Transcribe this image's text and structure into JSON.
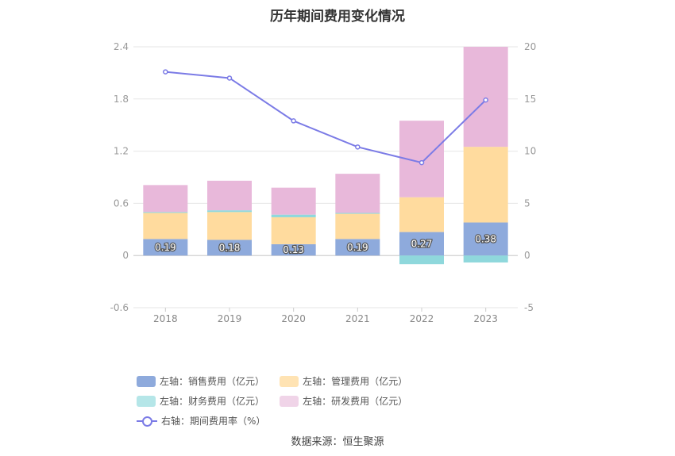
{
  "title": "历年期间费用变化情况",
  "source": "数据来源：恒生聚源",
  "chart_data": {
    "type": "bar",
    "stacked": true,
    "categories": [
      "2018",
      "2019",
      "2020",
      "2021",
      "2022",
      "2023"
    ],
    "left_axis": {
      "ylim": [
        -0.6,
        2.4
      ],
      "ticks": [
        "-0.6",
        "0",
        "0.6",
        "1.2",
        "1.8",
        "2.4"
      ]
    },
    "right_axis": {
      "ylim": [
        -5,
        20
      ],
      "ticks": [
        "-5",
        "0",
        "5",
        "10",
        "15",
        "20"
      ]
    },
    "grid": true,
    "legend_position": "bottom",
    "series": [
      {
        "name": "左轴：销售费用（亿元）",
        "color": "#8eaadc",
        "values": [
          0.19,
          0.18,
          0.13,
          0.19,
          0.27,
          0.38
        ],
        "labels": [
          "0.19",
          "0.18",
          "0.13",
          "0.19",
          "0.27",
          "0.38"
        ]
      },
      {
        "name": "左轴：管理费用（亿元）",
        "color": "#ffdb9e",
        "values": [
          0.3,
          0.32,
          0.31,
          0.29,
          0.4,
          0.87
        ]
      },
      {
        "name": "左轴：财务费用（亿元）",
        "color": "#8fd8dc",
        "values": [
          0.01,
          0.02,
          0.03,
          0.01,
          -0.1,
          -0.08
        ]
      },
      {
        "name": "左轴：研发费用（亿元）",
        "color": "#e8b8da",
        "values": [
          0.31,
          0.34,
          0.31,
          0.45,
          0.88,
          1.15
        ]
      },
      {
        "name": "右轴：期间费用率（%）",
        "color": "#7b7be6",
        "type": "line",
        "axis": "right",
        "values": [
          17.6,
          17.0,
          12.9,
          10.4,
          8.9,
          14.9
        ]
      }
    ]
  }
}
